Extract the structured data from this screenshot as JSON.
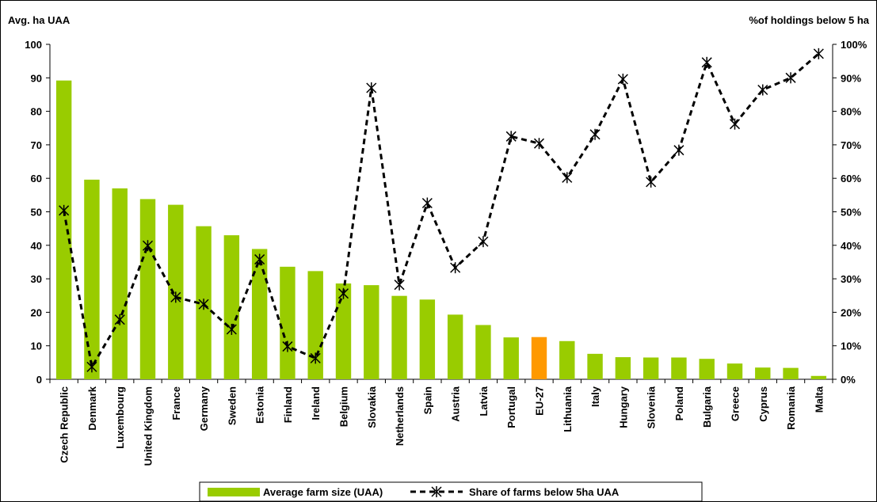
{
  "chart_data": {
    "type": "bar",
    "left_axis_title": "Avg. ha UAA",
    "right_axis_title": "%of holdings below 5 ha",
    "ylim_left": [
      0,
      100
    ],
    "ylim_right": [
      0,
      100
    ],
    "left_ticks": [
      "0",
      "10",
      "20",
      "30",
      "40",
      "50",
      "60",
      "70",
      "80",
      "90",
      "100"
    ],
    "right_ticks": [
      "0%",
      "10%",
      "20%",
      "30%",
      "40%",
      "50%",
      "60%",
      "70%",
      "80%",
      "90%",
      "100%"
    ],
    "grid": false,
    "legend_position": "bottom",
    "categories": [
      "Czech Republic",
      "Denmark",
      "Luxembourg",
      "United Kingdom",
      "France",
      "Germany",
      "Sweden",
      "Estonia",
      "Finland",
      "Ireland",
      "Belgium",
      "Slovakia",
      "Netherlands",
      "Spain",
      "Austria",
      "Latvia",
      "Portugal",
      "EU-27",
      "Lithuania",
      "Italy",
      "Hungary",
      "Slovenia",
      "Poland",
      "Bulgaria",
      "Greece",
      "Cyprus",
      "Romania",
      "Malta"
    ],
    "series": [
      {
        "name": "Average farm size (UAA)",
        "type": "bar",
        "axis": "left",
        "color": "#99CC00",
        "highlight": {
          "category": "EU-27",
          "color": "#FF9900"
        },
        "values": [
          89.2,
          59.6,
          57.0,
          53.8,
          52.1,
          45.7,
          43.0,
          38.9,
          33.6,
          32.3,
          28.6,
          28.1,
          24.9,
          23.8,
          19.3,
          16.2,
          12.5,
          12.6,
          11.4,
          7.6,
          6.6,
          6.5,
          6.5,
          6.1,
          4.7,
          3.5,
          3.4,
          1.0
        ]
      },
      {
        "name": "Share of farms below 5ha UAA",
        "type": "line",
        "axis": "right",
        "color": "#000000",
        "style": "dashed",
        "marker": "asterisk",
        "values": [
          50.4,
          3.7,
          17.8,
          39.9,
          24.5,
          22.4,
          14.9,
          35.8,
          9.8,
          6.3,
          25.6,
          87.0,
          28.2,
          52.6,
          33.3,
          41.1,
          72.5,
          70.4,
          60.2,
          73.1,
          89.6,
          58.9,
          68.4,
          94.6,
          76.2,
          86.4,
          90.0,
          97.2
        ]
      }
    ]
  }
}
